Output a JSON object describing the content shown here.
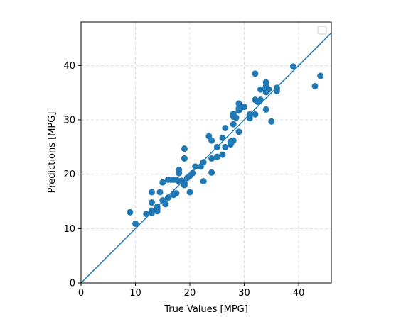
{
  "chart_data": {
    "type": "scatter",
    "title": "",
    "xlabel": "True Values [MPG]",
    "ylabel": "Predictions [MPG]",
    "xlim": [
      0,
      46
    ],
    "ylim": [
      0,
      48
    ],
    "xticks": [
      0,
      10,
      20,
      30,
      40
    ],
    "yticks": [
      0,
      10,
      20,
      30,
      40
    ],
    "grid": true,
    "grid_style": "dashed",
    "legend": {
      "placement": "top-right",
      "entries": []
    },
    "colors": {
      "points": "#1f77b4",
      "line": "#1f77b4",
      "grid": "#d3d3d3"
    },
    "reference_line": {
      "x": [
        0,
        46
      ],
      "y": [
        0,
        46
      ]
    },
    "series": [
      {
        "points": [
          [
            9,
            13.0
          ],
          [
            10,
            10.9
          ],
          [
            12,
            12.7
          ],
          [
            13,
            16.7
          ],
          [
            13,
            14.8
          ],
          [
            13,
            13.3
          ],
          [
            13,
            12.9
          ],
          [
            14,
            14.0
          ],
          [
            14,
            13.2
          ],
          [
            14,
            13.6
          ],
          [
            14.5,
            16.7
          ],
          [
            15,
            15.2
          ],
          [
            15,
            18.5
          ],
          [
            15.5,
            14.5
          ],
          [
            16,
            15.7
          ],
          [
            16,
            19.0
          ],
          [
            16.5,
            19.0
          ],
          [
            17,
            16.2
          ],
          [
            17,
            19.0
          ],
          [
            17.5,
            16.5
          ],
          [
            17.5,
            19.0
          ],
          [
            18,
            20.2
          ],
          [
            18,
            20.8
          ],
          [
            18,
            18.7
          ],
          [
            18.5,
            18.8
          ],
          [
            19,
            18.4
          ],
          [
            19,
            18.0
          ],
          [
            19,
            22.9
          ],
          [
            19,
            24.7
          ],
          [
            19.5,
            19.3
          ],
          [
            20,
            19.7
          ],
          [
            20,
            16.7
          ],
          [
            20.5,
            20.2
          ],
          [
            21,
            21.4
          ],
          [
            22,
            21.4
          ],
          [
            22.5,
            22.2
          ],
          [
            22.5,
            18.7
          ],
          [
            23.5,
            27.0
          ],
          [
            24,
            26.2
          ],
          [
            24,
            22.9
          ],
          [
            24,
            20.3
          ],
          [
            25,
            23.2
          ],
          [
            25,
            25.0
          ],
          [
            26,
            23.6
          ],
          [
            26,
            26.7
          ],
          [
            26.5,
            28.5
          ],
          [
            26.5,
            25.0
          ],
          [
            27.5,
            26.0
          ],
          [
            27.5,
            25.5
          ],
          [
            28,
            26.2
          ],
          [
            28,
            29.2
          ],
          [
            28,
            30.6
          ],
          [
            28,
            31.1
          ],
          [
            28.5,
            30.4
          ],
          [
            29,
            31.7
          ],
          [
            29,
            33.0
          ],
          [
            29,
            27.8
          ],
          [
            29,
            32.1
          ],
          [
            29.5,
            32.3
          ],
          [
            30,
            32.4
          ],
          [
            31,
            30.3
          ],
          [
            31,
            31.0
          ],
          [
            32,
            31.0
          ],
          [
            32,
            33.7
          ],
          [
            32,
            38.5
          ],
          [
            32.5,
            33.3
          ],
          [
            33,
            35.6
          ],
          [
            33,
            33.7
          ],
          [
            34,
            31.9
          ],
          [
            34,
            35.1
          ],
          [
            34,
            36.2
          ],
          [
            34,
            36.9
          ],
          [
            34.5,
            35.6
          ],
          [
            35,
            29.7
          ],
          [
            36,
            35.9
          ],
          [
            36,
            35.3
          ],
          [
            39,
            39.8
          ],
          [
            43,
            36.2
          ],
          [
            44,
            38.1
          ]
        ]
      }
    ]
  }
}
